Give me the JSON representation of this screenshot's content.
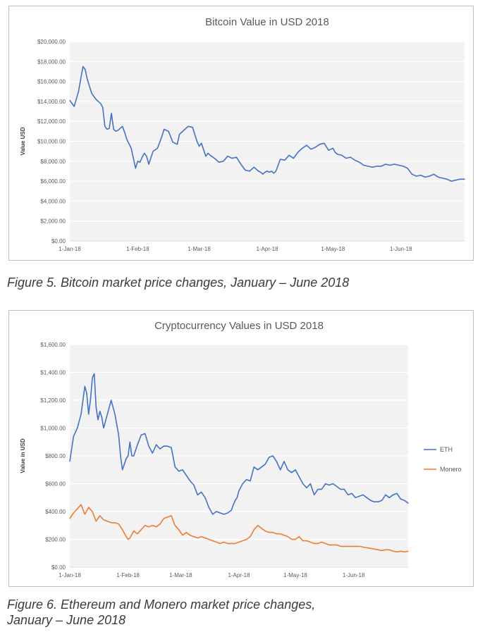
{
  "charts": [
    {
      "title": "Bitcoin Value in USD 2018",
      "caption": "Figure 5. Bitcoin market price changes, January – June 2018"
    },
    {
      "title": "Cryptocurrency Values in USD 2018",
      "caption_line1": "Figure 6. Ethereum and Monero market price changes,",
      "caption_line2": "January – June 2018"
    }
  ],
  "colors": {
    "eth": "#4472c4",
    "btc": "#4472c4",
    "monero": "#ed7d31",
    "plot_bg": "#f2f2f2",
    "grid": "#ffffff",
    "axis_text": "#595959"
  },
  "chart_data": [
    {
      "type": "line",
      "title": "Bitcoin Value in USD 2018",
      "xlabel": "",
      "ylabel": "Value USD",
      "ylim": [
        0,
        20000
      ],
      "ytick_labels": [
        "$0.00",
        "$2,000.00",
        "$4,000.00",
        "$6,000.00",
        "$8,000.00",
        "$10,000.00",
        "$12,000.00",
        "$14,000.00",
        "$16,000.00",
        "$18,000.00",
        "$20,000.00"
      ],
      "yticks": [
        0,
        2000,
        4000,
        6000,
        8000,
        10000,
        12000,
        14000,
        16000,
        18000,
        20000
      ],
      "xlim": [
        0,
        180
      ],
      "xtick_labels": [
        "1-Jan-18",
        "1-Feb-18",
        "1-Mar-18",
        "1-Apr-18",
        "1-May-18",
        "1-Jun-18"
      ],
      "xticks": [
        0,
        31,
        59,
        90,
        120,
        151
      ],
      "legend": "none",
      "series": [
        {
          "name": "Bitcoin",
          "x": [
            0,
            2,
            4,
            6,
            7,
            8,
            10,
            12,
            14,
            15,
            16,
            17,
            18,
            19,
            20,
            21,
            22,
            24,
            25,
            26,
            28,
            30,
            31,
            32,
            33,
            34,
            35,
            36,
            38,
            40,
            42,
            43,
            45,
            47,
            49,
            50,
            52,
            54,
            56,
            58,
            59,
            60,
            62,
            63,
            64,
            66,
            68,
            70,
            72,
            74,
            76,
            78,
            80,
            82,
            84,
            86,
            87,
            88,
            89,
            90,
            91,
            92,
            93,
            94,
            96,
            98,
            100,
            102,
            104,
            106,
            108,
            110,
            112,
            114,
            116,
            118,
            120,
            121,
            122,
            124,
            126,
            128,
            130,
            132,
            134,
            136,
            138,
            140,
            142,
            144,
            146,
            148,
            150,
            152,
            154,
            156,
            158,
            160,
            162,
            164,
            166,
            168,
            170,
            172,
            174,
            176,
            178,
            180
          ],
          "values": [
            14100,
            13500,
            15000,
            17500,
            17200,
            16200,
            14800,
            14200,
            13800,
            13400,
            11500,
            11200,
            11300,
            12800,
            11200,
            11000,
            11100,
            11500,
            10900,
            10200,
            9300,
            7300,
            8000,
            7900,
            8400,
            8800,
            8500,
            7700,
            9000,
            9300,
            10500,
            11200,
            11000,
            9900,
            9700,
            10700,
            11100,
            11500,
            11400,
            10000,
            9500,
            9800,
            8500,
            8800,
            8600,
            8300,
            7900,
            8000,
            8500,
            8300,
            8400,
            7700,
            7100,
            7000,
            7400,
            7000,
            6900,
            6700,
            6900,
            7000,
            6900,
            7000,
            6800,
            7000,
            8200,
            8100,
            8600,
            8300,
            8900,
            9300,
            9600,
            9200,
            9400,
            9700,
            9800,
            9100,
            9300,
            8900,
            8700,
            8600,
            8300,
            8400,
            8100,
            7900,
            7600,
            7500,
            7400,
            7500,
            7500,
            7700,
            7600,
            7700,
            7600,
            7500,
            7300,
            6700,
            6500,
            6600,
            6400,
            6500,
            6700,
            6400,
            6300,
            6200,
            6000,
            6100,
            6200,
            6200
          ]
        }
      ]
    },
    {
      "type": "line",
      "title": "Cryptocurrency Values in USD 2018",
      "xlabel": "",
      "ylabel": "Value in USD",
      "ylim": [
        0,
        1600
      ],
      "ytick_labels": [
        "$0.00",
        "$200.00",
        "$400.00",
        "$600.00",
        "$800.00",
        "$1,000.00",
        "$1,200.00",
        "$1,400.00",
        "$1,600.00"
      ],
      "yticks": [
        0,
        200,
        400,
        600,
        800,
        1000,
        1200,
        1400,
        1600
      ],
      "xlim": [
        0,
        180
      ],
      "xtick_labels": [
        "1-Jan-18",
        "1-Feb-18",
        "1-Mar-18",
        "1-Apr-18",
        "1-May-18",
        "1-Jun-18"
      ],
      "xticks": [
        0,
        31,
        59,
        90,
        120,
        151
      ],
      "legend": "right",
      "series": [
        {
          "name": "ETH",
          "x": [
            0,
            2,
            4,
            6,
            8,
            9,
            10,
            11,
            12,
            13,
            14,
            15,
            16,
            17,
            18,
            19,
            20,
            22,
            24,
            26,
            27,
            28,
            30,
            31,
            32,
            33,
            34,
            36,
            38,
            40,
            42,
            44,
            46,
            48,
            50,
            52,
            54,
            56,
            58,
            60,
            62,
            64,
            66,
            68,
            70,
            72,
            74,
            76,
            78,
            80,
            82,
            84,
            86,
            87,
            88,
            89,
            90,
            92,
            94,
            96,
            98,
            100,
            102,
            104,
            106,
            108,
            110,
            112,
            114,
            116,
            118,
            120,
            122,
            124,
            126,
            128,
            130,
            132,
            134,
            136,
            138,
            140,
            142,
            144,
            146,
            148,
            150,
            152,
            154,
            156,
            158,
            160,
            162,
            164,
            166,
            168,
            170,
            172,
            174,
            176,
            178,
            180
          ],
          "values": [
            760,
            940,
            1000,
            1100,
            1300,
            1250,
            1100,
            1200,
            1360,
            1390,
            1150,
            1060,
            1120,
            1080,
            1000,
            1050,
            1100,
            1200,
            1100,
            950,
            800,
            700,
            780,
            800,
            900,
            800,
            800,
            880,
            950,
            960,
            870,
            820,
            880,
            850,
            870,
            870,
            860,
            720,
            690,
            700,
            660,
            620,
            590,
            520,
            540,
            500,
            430,
            380,
            400,
            390,
            380,
            390,
            410,
            450,
            480,
            500,
            550,
            600,
            630,
            620,
            720,
            700,
            720,
            740,
            790,
            800,
            760,
            700,
            760,
            700,
            680,
            700,
            650,
            600,
            570,
            600,
            520,
            560,
            560,
            600,
            590,
            600,
            580,
            560,
            560,
            520,
            530,
            500,
            510,
            520,
            500,
            480,
            470,
            470,
            480,
            520,
            500,
            520,
            530,
            490,
            480,
            460
          ]
        },
        {
          "name": "Monero",
          "x": [
            0,
            2,
            4,
            6,
            8,
            10,
            12,
            14,
            16,
            18,
            20,
            22,
            24,
            26,
            28,
            30,
            31,
            32,
            34,
            36,
            38,
            40,
            42,
            44,
            46,
            48,
            50,
            52,
            54,
            56,
            58,
            60,
            62,
            64,
            66,
            68,
            70,
            72,
            74,
            76,
            78,
            80,
            82,
            84,
            86,
            88,
            90,
            92,
            94,
            96,
            98,
            100,
            102,
            104,
            106,
            108,
            110,
            112,
            114,
            116,
            118,
            120,
            122,
            124,
            126,
            128,
            130,
            132,
            134,
            136,
            138,
            140,
            142,
            144,
            146,
            148,
            150,
            152,
            154,
            156,
            158,
            160,
            162,
            164,
            166,
            168,
            170,
            172,
            174,
            176,
            178,
            180
          ],
          "values": [
            350,
            390,
            420,
            450,
            380,
            430,
            400,
            330,
            370,
            340,
            330,
            320,
            320,
            310,
            270,
            220,
            200,
            210,
            260,
            240,
            270,
            300,
            290,
            300,
            290,
            310,
            350,
            360,
            370,
            300,
            270,
            230,
            250,
            230,
            220,
            210,
            220,
            210,
            200,
            190,
            180,
            170,
            180,
            170,
            170,
            170,
            180,
            190,
            200,
            220,
            270,
            300,
            280,
            260,
            250,
            250,
            240,
            240,
            230,
            220,
            200,
            200,
            220,
            190,
            190,
            180,
            170,
            170,
            180,
            170,
            160,
            160,
            160,
            150,
            150,
            150,
            150,
            150,
            150,
            145,
            140,
            135,
            130,
            125,
            120,
            125,
            125,
            115,
            110,
            115,
            110,
            115
          ]
        }
      ]
    }
  ]
}
